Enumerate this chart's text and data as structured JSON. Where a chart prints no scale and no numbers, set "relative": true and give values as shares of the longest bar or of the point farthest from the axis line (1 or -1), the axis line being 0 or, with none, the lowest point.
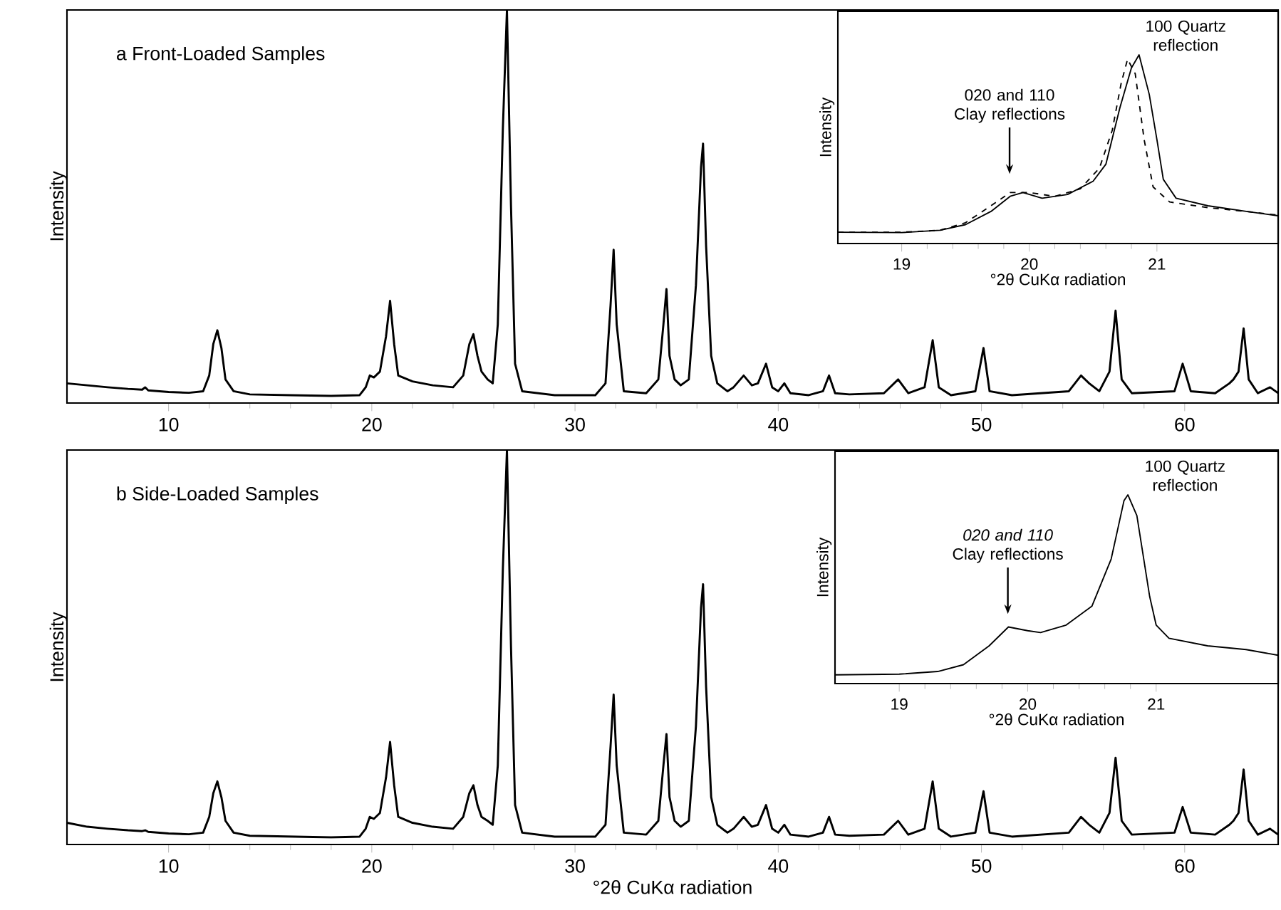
{
  "chart_data": [
    {
      "type": "line",
      "title": "a  Front-Loaded Samples",
      "ylabel": "Intensity",
      "relative": true,
      "xlim": [
        5,
        64.6
      ],
      "xticks": [
        10,
        20,
        30,
        40,
        50,
        60
      ],
      "x": [
        5,
        6,
        7,
        8,
        8.7,
        8.85,
        9,
        10,
        11,
        11.7,
        12.0,
        12.2,
        12.4,
        12.6,
        12.8,
        13.2,
        14,
        16,
        18,
        19.4,
        19.7,
        19.9,
        20.1,
        20.4,
        20.7,
        20.9,
        21.1,
        21.3,
        22,
        23,
        24,
        24.5,
        24.8,
        25.0,
        25.2,
        25.4,
        25.7,
        25.95,
        26.2,
        26.45,
        26.65,
        26.85,
        27.05,
        27.4,
        29,
        31,
        31.5,
        31.75,
        31.9,
        32.05,
        32.4,
        33.5,
        34.1,
        34.35,
        34.5,
        34.65,
        34.9,
        35.2,
        35.6,
        35.95,
        36.2,
        36.3,
        36.45,
        36.7,
        37.0,
        37.5,
        37.8,
        38.3,
        38.7,
        39.0,
        39.4,
        39.7,
        40.0,
        40.3,
        40.6,
        41.5,
        42.2,
        42.5,
        42.8,
        43.5,
        45.2,
        45.9,
        46.4,
        47.2,
        47.6,
        47.9,
        48.5,
        49.7,
        50.1,
        50.4,
        51.5,
        54.3,
        54.9,
        55.3,
        55.8,
        56.3,
        56.6,
        56.9,
        57.4,
        59.5,
        59.9,
        60.3,
        61.5,
        62.2,
        62.4,
        62.65,
        62.9,
        63.15,
        63.6,
        64.2,
        64.6
      ],
      "series": [
        {
          "color": "#000000",
          "values": [
            0.05,
            0.045,
            0.04,
            0.036,
            0.034,
            0.04,
            0.032,
            0.028,
            0.026,
            0.03,
            0.07,
            0.15,
            0.185,
            0.14,
            0.06,
            0.03,
            0.022,
            0.02,
            0.018,
            0.02,
            0.04,
            0.07,
            0.065,
            0.08,
            0.17,
            0.26,
            0.15,
            0.07,
            0.055,
            0.045,
            0.04,
            0.07,
            0.15,
            0.175,
            0.12,
            0.08,
            0.06,
            0.05,
            0.2,
            0.7,
            1.0,
            0.5,
            0.1,
            0.03,
            0.02,
            0.02,
            0.05,
            0.25,
            0.39,
            0.2,
            0.03,
            0.025,
            0.06,
            0.2,
            0.29,
            0.12,
            0.06,
            0.045,
            0.06,
            0.3,
            0.6,
            0.66,
            0.4,
            0.12,
            0.05,
            0.03,
            0.04,
            0.07,
            0.045,
            0.05,
            0.1,
            0.04,
            0.03,
            0.05,
            0.025,
            0.02,
            0.03,
            0.07,
            0.025,
            0.022,
            0.025,
            0.06,
            0.025,
            0.04,
            0.16,
            0.04,
            0.02,
            0.03,
            0.14,
            0.03,
            0.02,
            0.03,
            0.07,
            0.05,
            0.03,
            0.08,
            0.235,
            0.06,
            0.025,
            0.03,
            0.1,
            0.03,
            0.025,
            0.05,
            0.06,
            0.08,
            0.19,
            0.06,
            0.025,
            0.04,
            0.025
          ]
        }
      ]
    },
    {
      "type": "line",
      "xlabel": "°2θ CuKα radiation",
      "ylabel": "Intensity",
      "relative": true,
      "xlim": [
        18.5,
        21.95
      ],
      "xticks": [
        19,
        20,
        21
      ],
      "series": [
        {
          "color": "#000000",
          "line_style": "solid",
          "x": [
            18.5,
            19.0,
            19.3,
            19.5,
            19.7,
            19.85,
            19.95,
            20.1,
            20.3,
            20.5,
            20.6,
            20.71,
            20.8,
            20.86,
            20.94,
            21.0,
            21.05,
            21.15,
            21.4,
            21.7,
            21.95
          ],
          "values": [
            0.06,
            0.058,
            0.07,
            0.1,
            0.17,
            0.25,
            0.27,
            0.24,
            0.26,
            0.33,
            0.42,
            0.72,
            0.93,
            1.0,
            0.79,
            0.55,
            0.34,
            0.24,
            0.2,
            0.17,
            0.147
          ]
        },
        {
          "color": "#000000",
          "line_style": "dashed",
          "x": [
            18.5,
            19.0,
            19.3,
            19.5,
            19.7,
            19.85,
            20.0,
            20.2,
            20.4,
            20.55,
            20.65,
            20.72,
            20.77,
            20.83,
            20.9,
            20.97,
            21.1,
            21.4,
            21.7,
            21.95
          ],
          "values": [
            0.06,
            0.06,
            0.07,
            0.11,
            0.2,
            0.27,
            0.27,
            0.25,
            0.29,
            0.4,
            0.6,
            0.85,
            0.977,
            0.9,
            0.55,
            0.3,
            0.22,
            0.19,
            0.17,
            0.15
          ]
        }
      ],
      "annotations": [
        "020 and 110 Clay reflections",
        "100 Quartz reflection"
      ]
    },
    {
      "type": "line",
      "title": "b  Side-Loaded Samples",
      "xlabel": "°2θ CuKα radiation",
      "ylabel": "Intensity",
      "relative": true,
      "xlim": [
        5,
        64.6
      ],
      "xticks": [
        10,
        20,
        30,
        40,
        50,
        60
      ],
      "x": [
        5,
        6,
        7,
        8,
        8.7,
        8.85,
        9,
        10,
        11,
        11.7,
        12.0,
        12.2,
        12.4,
        12.6,
        12.8,
        13.2,
        14,
        16,
        18,
        19.4,
        19.7,
        19.9,
        20.1,
        20.4,
        20.7,
        20.9,
        21.1,
        21.3,
        22,
        23,
        24,
        24.5,
        24.8,
        25.0,
        25.2,
        25.4,
        25.7,
        25.95,
        26.2,
        26.45,
        26.65,
        26.85,
        27.05,
        27.4,
        29,
        31,
        31.5,
        31.75,
        31.9,
        32.05,
        32.4,
        33.5,
        34.1,
        34.35,
        34.5,
        34.65,
        34.9,
        35.2,
        35.6,
        35.95,
        36.2,
        36.3,
        36.45,
        36.7,
        37.0,
        37.5,
        37.8,
        38.3,
        38.7,
        39.0,
        39.4,
        39.7,
        40.0,
        40.3,
        40.6,
        41.5,
        42.2,
        42.5,
        42.8,
        43.5,
        45.2,
        45.9,
        46.4,
        47.2,
        47.6,
        47.9,
        48.5,
        49.7,
        50.1,
        50.4,
        51.5,
        54.3,
        54.9,
        55.3,
        55.8,
        56.3,
        56.6,
        56.9,
        57.4,
        59.5,
        59.9,
        60.3,
        61.5,
        62.2,
        62.4,
        62.65,
        62.9,
        63.15,
        63.6,
        64.2,
        64.6
      ],
      "series": [
        {
          "color": "#000000",
          "values": [
            0.055,
            0.045,
            0.04,
            0.036,
            0.034,
            0.036,
            0.032,
            0.028,
            0.026,
            0.03,
            0.07,
            0.13,
            0.16,
            0.12,
            0.06,
            0.03,
            0.022,
            0.02,
            0.018,
            0.02,
            0.04,
            0.07,
            0.065,
            0.08,
            0.17,
            0.26,
            0.15,
            0.07,
            0.055,
            0.045,
            0.04,
            0.07,
            0.13,
            0.15,
            0.1,
            0.07,
            0.06,
            0.05,
            0.2,
            0.7,
            1.0,
            0.5,
            0.1,
            0.03,
            0.02,
            0.02,
            0.05,
            0.25,
            0.38,
            0.2,
            0.03,
            0.025,
            0.06,
            0.2,
            0.28,
            0.12,
            0.06,
            0.045,
            0.06,
            0.3,
            0.6,
            0.66,
            0.4,
            0.12,
            0.05,
            0.03,
            0.04,
            0.07,
            0.045,
            0.05,
            0.1,
            0.04,
            0.03,
            0.05,
            0.025,
            0.02,
            0.03,
            0.07,
            0.025,
            0.022,
            0.025,
            0.06,
            0.025,
            0.04,
            0.16,
            0.04,
            0.02,
            0.03,
            0.135,
            0.03,
            0.02,
            0.03,
            0.07,
            0.05,
            0.03,
            0.08,
            0.22,
            0.06,
            0.025,
            0.03,
            0.095,
            0.03,
            0.025,
            0.05,
            0.06,
            0.08,
            0.19,
            0.06,
            0.025,
            0.04,
            0.025
          ]
        }
      ]
    },
    {
      "type": "line",
      "xlabel": "°2θ CuKα radiation",
      "ylabel": "Intensity",
      "relative": true,
      "xlim": [
        18.5,
        21.95
      ],
      "xticks": [
        19,
        20,
        21
      ],
      "series": [
        {
          "color": "#000000",
          "line_style": "solid",
          "x": [
            18.5,
            19.0,
            19.3,
            19.5,
            19.7,
            19.85,
            20.0,
            20.1,
            20.3,
            20.5,
            20.65,
            20.75,
            20.78,
            20.85,
            20.95,
            21.0,
            21.1,
            21.4,
            21.7,
            21.95
          ],
          "values": [
            0.046,
            0.05,
            0.064,
            0.1,
            0.2,
            0.3,
            0.28,
            0.27,
            0.31,
            0.41,
            0.66,
            0.97,
            1.0,
            0.89,
            0.46,
            0.31,
            0.24,
            0.2,
            0.18,
            0.15
          ]
        }
      ],
      "annotations": [
        "*020 and 110* Clay reflections",
        "100 Quartz reflection"
      ]
    }
  ]
}
